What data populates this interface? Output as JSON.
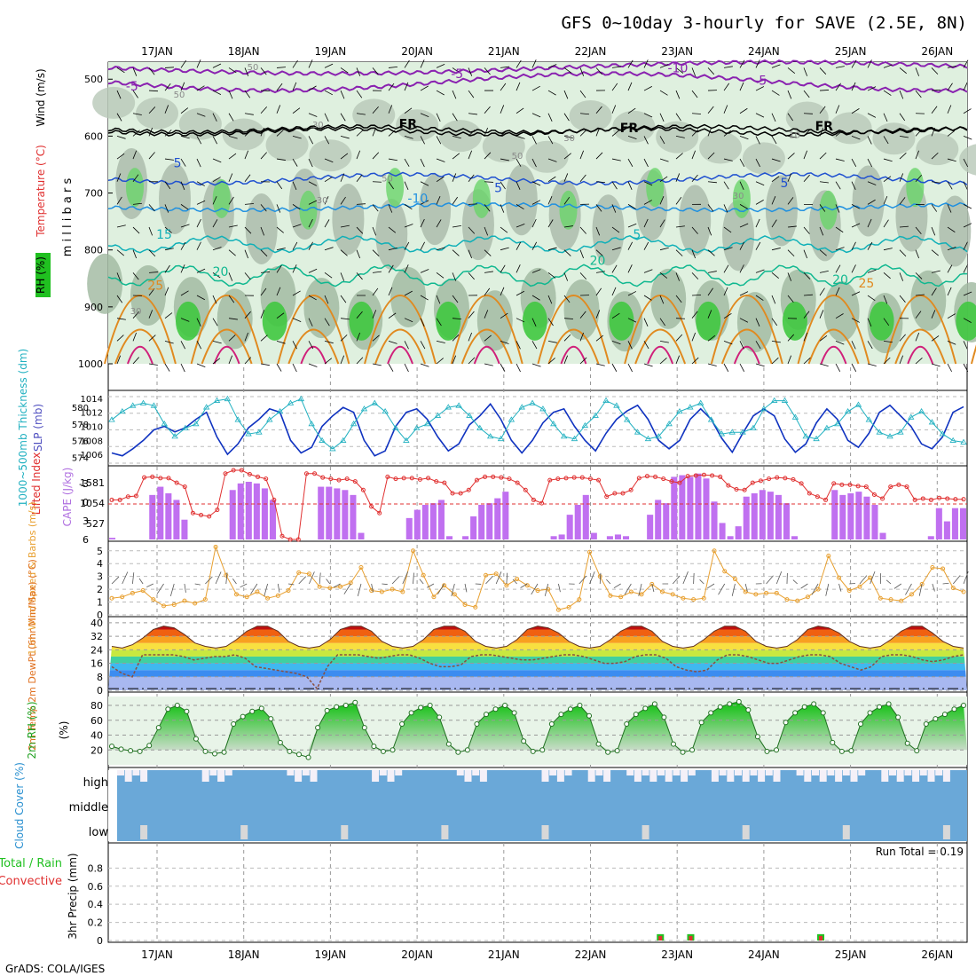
{
  "title": "GFS 0~10day 3-hourly for SAVE (2.5E, 8N)",
  "footer": "GrADS: COLA/IGES",
  "run_total": "Run Total = 0.19",
  "colors": {
    "wind_purple": "#8a22b0",
    "fr_black": "#000000",
    "blue5": "#1f50d0",
    "blue10": "#1f90e0",
    "cyan15": "#10b0b8",
    "green20": "#10b890",
    "orange25": "#e08a20",
    "magenta": "#d0207a",
    "slp": "#1033c0",
    "thick": "#20b0c0",
    "li": "#e03030",
    "cape": "#c070f0",
    "wind10": "#e8a030",
    "rh_green": "#20c020",
    "cloud": "#6aa8d8",
    "rain": "#20c020",
    "conv": "#e03030"
  },
  "chart_data": [
    {
      "type": "heatmap",
      "panel": "upper-air",
      "ylabel": "m i l l i b a r s",
      "side_labels": [
        "Wind (m/s)",
        "Temperature (°C)",
        "RH (%)"
      ],
      "y_ticks": [
        500,
        600,
        700,
        800,
        900,
        1000
      ],
      "dates": [
        "17JAN",
        "18JAN",
        "19JAN",
        "20JAN",
        "21JAN",
        "22JAN",
        "23JAN",
        "24JAN",
        "25JAN",
        "26JAN"
      ],
      "contour_labels": [
        {
          "text": "-5",
          "level": 520,
          "day": 0.05,
          "color": "purple"
        },
        {
          "text": "-5",
          "level": 498,
          "day": 3.8,
          "color": "purple"
        },
        {
          "text": "-10",
          "level": 488,
          "day": 6.3,
          "color": "purple"
        },
        {
          "text": "-5",
          "level": 510,
          "day": 7.3,
          "color": "purple"
        },
        {
          "text": "FR",
          "level": 586,
          "day": 3.2,
          "color": "black"
        },
        {
          "text": "FR",
          "level": 593,
          "day": 5.75,
          "color": "black"
        },
        {
          "text": "FR",
          "level": 590,
          "day": 8.0,
          "color": "black"
        },
        {
          "text": "5",
          "level": 655,
          "day": 0.6,
          "color": "blue5"
        },
        {
          "text": "5",
          "level": 698,
          "day": 4.3,
          "color": "blue5"
        },
        {
          "text": "5",
          "level": 690,
          "day": 7.6,
          "color": "blue5"
        },
        {
          "text": "-10",
          "level": 717,
          "day": 3.3,
          "color": "blue10"
        },
        {
          "text": "15",
          "level": 780,
          "day": 0.4,
          "color": "cyan15"
        },
        {
          "text": "5",
          "level": 780,
          "day": 5.9,
          "color": "cyan15"
        },
        {
          "text": "20",
          "level": 846,
          "day": 1.05,
          "color": "green20"
        },
        {
          "text": "20",
          "level": 826,
          "day": 5.4,
          "color": "green20"
        },
        {
          "text": "20",
          "level": 860,
          "day": 8.2,
          "color": "green20"
        },
        {
          "text": "25",
          "level": 870,
          "day": 0.3,
          "color": "orange25"
        },
        {
          "text": "25",
          "level": 866,
          "day": 8.5,
          "color": "orange25"
        },
        {
          "text": "50",
          "level": 532,
          "day": 0.6,
          "color": "gray"
        },
        {
          "text": "50",
          "level": 484,
          "day": 1.45,
          "color": "gray"
        },
        {
          "text": "30",
          "level": 585,
          "day": 2.2,
          "color": "gray"
        },
        {
          "text": "50",
          "level": 640,
          "day": 4.5,
          "color": "gray"
        },
        {
          "text": "50",
          "level": 680,
          "day": 3.0,
          "color": "gray"
        },
        {
          "text": "30",
          "level": 718,
          "day": 2.25,
          "color": "gray"
        },
        {
          "text": "30",
          "level": 609,
          "day": 5.1,
          "color": "gray"
        },
        {
          "text": "30",
          "level": 710,
          "day": 7.05,
          "color": "gray"
        },
        {
          "text": "10",
          "level": 603,
          "day": 7.7,
          "color": "gray"
        },
        {
          "text": "30",
          "level": 913,
          "day": 0.1,
          "color": "gray"
        }
      ]
    },
    {
      "type": "line",
      "panel": "slp-thickness",
      "ylabel_left": "1000~500mb Thickness (dm)",
      "ylabel_right": "SLP (mb)",
      "left_ticks": [
        574,
        576,
        578,
        580
      ],
      "right_ticks": [
        1006,
        1008,
        1010,
        1012,
        1014
      ],
      "series": [
        {
          "name": "SLP (mb)",
          "axis": "right",
          "values": [
            1006.2,
            1005.8,
            1006.8,
            1008.0,
            1009.5,
            1010.0,
            1009.2,
            1009.8,
            1011.0,
            1012.0,
            1008.5,
            1006.0,
            1007.5,
            1009.8,
            1011.0,
            1012.5,
            1012.0,
            1008.0,
            1006.2,
            1007.0,
            1010.0,
            1011.5,
            1012.7,
            1012.0,
            1008.0,
            1005.8,
            1006.5,
            1010.0,
            1012.0,
            1012.5,
            1011.0,
            1008.5,
            1006.5,
            1007.5,
            1010.2,
            1011.5,
            1013.2,
            1011.0,
            1008.0,
            1006.2,
            1008.0,
            1010.5,
            1012.0,
            1012.5,
            1010.0,
            1008.0,
            1006.5,
            1009.0,
            1011.0,
            1012.2,
            1013.0,
            1011.0,
            1008.0,
            1006.8,
            1008.0,
            1011.0,
            1012.5,
            1011.0,
            1008.3,
            1006.3,
            1009.0,
            1011.5,
            1012.5,
            1011.5,
            1008.2,
            1006.3,
            1007.5,
            1010.5,
            1012.5,
            1011.0,
            1008.0,
            1007.0,
            1009.0,
            1012.0,
            1013.0,
            1011.5,
            1010.0,
            1007.5,
            1006.8,
            1008.5,
            1012.0,
            1012.8
          ]
        },
        {
          "name": "Thickness (dm)",
          "axis": "left",
          "values": [
            578.5,
            579.5,
            580.2,
            580.5,
            580.2,
            578.0,
            576.5,
            577.5,
            578.0,
            580.0,
            580.8,
            581.0,
            578.5,
            576.8,
            577.0,
            578.5,
            579.5,
            580.5,
            581.0,
            578.0,
            576.0,
            575.0,
            576.0,
            578.0,
            579.8,
            580.5,
            579.5,
            577.5,
            576.0,
            577.5,
            578.0,
            579.0,
            580.0,
            580.2,
            579.0,
            577.5,
            576.5,
            576.2,
            578.5,
            580.0,
            580.5,
            579.8,
            578.0,
            576.5,
            576.2,
            577.8,
            579.0,
            580.8,
            580.2,
            578.5,
            577.0,
            576.2,
            576.5,
            578.0,
            579.5,
            580.0,
            580.5,
            578.5,
            576.8,
            577.0,
            577.0,
            577.5,
            579.8,
            580.8,
            580.8,
            578.8,
            576.5,
            576.2,
            577.5,
            578.0,
            579.5,
            580.3,
            578.5,
            577.0,
            576.5,
            577.0,
            578.8,
            579.5,
            578.2,
            576.8,
            576.0,
            575.8
          ]
        }
      ]
    },
    {
      "type": "bar",
      "panel": "cape-li",
      "ylabel_left": "Lifted Index",
      "ylabel_right": "CAPE (J/kg)",
      "li_ticks": [
        "-3",
        "0",
        "3",
        "6"
      ],
      "cape_ticks": [
        527,
        1054,
        1581
      ],
      "series": [
        {
          "name": "CAPE (J/kg)",
          "values": [
            50,
            0,
            0,
            0,
            0,
            1350,
            1600,
            1400,
            1200,
            600,
            0,
            0,
            0,
            0,
            0,
            1500,
            1700,
            1750,
            1700,
            1550,
            1200,
            0,
            0,
            0,
            0,
            0,
            1600,
            1600,
            1550,
            1500,
            1350,
            200,
            0,
            0,
            0,
            0,
            0,
            650,
            900,
            1050,
            1100,
            1200,
            100,
            0,
            100,
            700,
            1050,
            1100,
            1250,
            1450,
            0,
            0,
            0,
            0,
            0,
            100,
            150,
            750,
            1050,
            1350,
            200,
            0,
            100,
            150,
            100,
            0,
            0,
            750,
            1200,
            1100,
            1900,
            1950,
            1900,
            2000,
            1850,
            1150,
            500,
            100,
            400,
            1300,
            1400,
            1500,
            1450,
            1350,
            1100,
            100,
            0,
            0,
            0,
            0,
            1500,
            1350,
            1400,
            1450,
            1300,
            1050,
            200,
            0,
            0,
            0,
            0,
            0,
            100,
            950,
            550,
            950,
            950
          ]
        },
        {
          "name": "Lifted Index",
          "values": [
            0,
            0,
            -0.5,
            -0.6,
            -3.4,
            -3.5,
            -3.3,
            -3.3,
            -2.6,
            -2,
            2.0,
            2.3,
            2.5,
            1.5,
            -4,
            -4.5,
            -4.5,
            -3.9,
            -3.5,
            -3.2,
            0,
            5.5,
            6,
            6,
            -4,
            -4.0,
            -3.4,
            -3.2,
            -3.0,
            -3.2,
            -2.8,
            -1.5,
            1,
            2.0,
            -3.5,
            -3.2,
            -3.3,
            -3.3,
            -3.1,
            -3.3,
            -2.8,
            -2.6,
            -1.0,
            -1.0,
            -1.5,
            -3.0,
            -3.5,
            -3.5,
            -3.4,
            -3.2,
            -2.6,
            -1.5,
            0,
            0.5,
            -3.0,
            -3.2,
            -3.3,
            -3.4,
            -3.4,
            -3.2,
            -3.0,
            -0.5,
            -1.0,
            -1.0,
            -1.5,
            -3.3,
            -3.6,
            -3.5,
            -3.2,
            -2.8,
            -2.6,
            -3.6,
            -3.7,
            -3.8,
            -3.7,
            -3.5,
            -2.2,
            -1.6,
            -1.5,
            -2.6,
            -2.9,
            -3.2,
            -3.4,
            -3.3,
            -3.1,
            -2.5,
            -1.0,
            -0.5,
            0,
            -2.5,
            -2.3,
            -2.3,
            -2.1,
            -2.0,
            -0.8,
            -0.2,
            -2.0,
            -2.3,
            -2.0,
            0,
            -0.2,
            0,
            -0.3,
            -0.2,
            -0.1,
            -0.1
          ]
        }
      ]
    },
    {
      "type": "line",
      "panel": "wind10m",
      "ylabel": "10m Wind Speed & Barbs (m/s)",
      "y_ticks": [
        0,
        1,
        2,
        3,
        4,
        5
      ],
      "series": [
        {
          "name": "10m Wind Speed",
          "values": [
            1.3,
            1.4,
            1.7,
            1.9,
            1.2,
            0.7,
            0.8,
            1.1,
            0.9,
            1.2,
            5.3,
            3.1,
            1.6,
            1.4,
            1.8,
            1.3,
            1.5,
            1.9,
            3.3,
            3.2,
            2.2,
            2.1,
            2.2,
            2.5,
            3.7,
            1.9,
            1.8,
            2.0,
            1.8,
            5.0,
            3.1,
            1.4,
            2.3,
            1.6,
            0.8,
            0.6,
            3.1,
            3.2,
            2.3,
            2.8,
            2.3,
            1.9,
            2.0,
            0.4,
            0.6,
            1.2,
            4.9,
            3.0,
            1.5,
            1.4,
            1.8,
            1.6,
            2.4,
            1.8,
            1.6,
            1.3,
            1.2,
            1.3,
            5.0,
            3.4,
            2.8,
            1.8,
            1.6,
            1.7,
            1.7,
            1.2,
            1.1,
            1.4,
            2.0,
            4.6,
            2.9,
            1.9,
            2.2,
            2.9,
            1.3,
            1.2,
            1.1,
            1.6,
            2.4,
            3.7,
            3.6,
            2.1,
            1.8
          ]
        }
      ]
    },
    {
      "type": "line",
      "panel": "temp2m",
      "ylabel": "2m Temp 2m DewPt (6hr Min/Max) (°C)",
      "y_ticks": [
        0,
        8,
        16,
        24,
        32,
        40
      ],
      "series": [
        {
          "name": "2m Temp",
          "values": [
            26,
            25,
            27,
            31,
            36,
            38,
            37,
            33,
            28,
            26,
            25,
            26,
            30,
            35,
            38,
            38,
            35,
            29,
            26,
            25,
            26,
            30,
            36,
            38,
            38,
            35,
            29,
            26,
            25,
            26,
            30,
            36,
            38,
            38,
            35,
            29,
            26,
            25,
            26,
            30,
            36,
            38,
            37,
            34,
            29,
            26,
            25,
            26,
            30,
            35,
            38,
            38,
            35,
            29,
            26,
            25,
            26,
            30,
            35,
            38,
            38,
            35,
            29,
            26,
            25,
            26,
            30,
            36,
            38,
            37,
            34,
            29,
            26,
            25,
            26,
            30,
            35,
            38,
            38,
            34,
            29,
            26,
            25
          ]
        },
        {
          "name": "2m DewPt",
          "values": [
            14,
            10,
            8,
            21,
            21,
            21,
            21,
            20,
            18,
            19,
            20,
            20,
            21,
            19,
            14,
            13,
            12,
            11,
            10,
            8,
            1,
            14,
            21,
            21,
            21,
            20,
            19,
            20,
            21,
            21,
            19,
            16,
            14,
            14,
            15,
            20,
            21,
            21,
            20,
            19,
            18,
            18,
            19,
            20,
            21,
            21,
            20,
            18,
            16,
            16,
            17,
            20,
            21,
            21,
            19,
            14,
            12,
            11,
            12,
            18,
            21,
            21,
            20,
            18,
            16,
            16,
            18,
            20,
            21,
            21,
            20,
            16,
            14,
            12,
            14,
            20,
            21,
            21,
            20,
            18,
            17,
            18,
            20,
            21
          ]
        }
      ]
    },
    {
      "type": "area",
      "panel": "rh2m",
      "ylabel": "2m RH (%)",
      "y_ticks": [
        20,
        40,
        60,
        80
      ],
      "series": [
        {
          "name": "2m RH",
          "values": [
            25,
            21,
            19,
            18,
            26,
            50,
            75,
            80,
            72,
            35,
            18,
            15,
            17,
            55,
            65,
            72,
            76,
            62,
            30,
            18,
            14,
            10,
            50,
            73,
            78,
            80,
            84,
            50,
            25,
            18,
            20,
            55,
            70,
            77,
            80,
            64,
            28,
            17,
            20,
            55,
            68,
            75,
            80,
            70,
            32,
            18,
            20,
            55,
            68,
            75,
            80,
            66,
            28,
            17,
            19,
            55,
            68,
            76,
            82,
            64,
            28,
            17,
            20,
            57,
            70,
            78,
            82,
            85,
            74,
            38,
            18,
            20,
            57,
            70,
            78,
            82,
            70,
            30,
            18,
            19,
            55,
            70,
            78,
            82,
            64,
            29,
            19,
            55,
            62,
            68,
            75,
            80
          ]
        }
      ]
    },
    {
      "type": "bar",
      "panel": "cloud",
      "ylabel": "Cloud Cover (%)",
      "levels": [
        "high",
        "middle",
        "low"
      ]
    },
    {
      "type": "bar",
      "panel": "precip",
      "ylabel": "3hr Precip (mm)",
      "legend": [
        "Total / Rain",
        "Convective"
      ],
      "y_ticks": [
        0,
        0.2,
        0.4,
        0.6,
        0.8
      ],
      "events": [
        {
          "day": 6.4,
          "total": 0.07,
          "conv": 0.05
        },
        {
          "day": 6.75,
          "total": 0.07,
          "conv": 0.05
        },
        {
          "day": 8.25,
          "total": 0.07,
          "conv": 0.05
        }
      ]
    }
  ]
}
